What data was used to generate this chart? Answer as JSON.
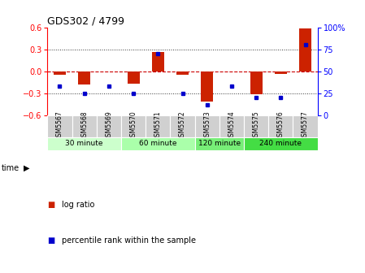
{
  "title": "GDS302 / 4799",
  "samples": [
    "GSM5567",
    "GSM5568",
    "GSM5569",
    "GSM5570",
    "GSM5571",
    "GSM5572",
    "GSM5573",
    "GSM5574",
    "GSM5575",
    "GSM5576",
    "GSM5577"
  ],
  "log_ratio": [
    -0.05,
    -0.18,
    -0.01,
    -0.17,
    0.26,
    -0.05,
    -0.42,
    -0.01,
    -0.32,
    -0.04,
    0.58
  ],
  "percentile_rank": [
    33,
    25,
    33,
    25,
    70,
    25,
    12,
    33,
    20,
    20,
    80
  ],
  "ylim_left": [
    -0.6,
    0.6
  ],
  "ylim_right": [
    0,
    100
  ],
  "yticks_left": [
    -0.6,
    -0.3,
    0.0,
    0.3,
    0.6
  ],
  "yticks_right": [
    0,
    25,
    50,
    75,
    100
  ],
  "bar_color": "#cc2200",
  "point_color": "#0000cc",
  "hline_color": "#cc0000",
  "dotted_line_color": "#333333",
  "groups": [
    {
      "label": "30 minute",
      "samples": [
        0,
        1,
        2
      ]
    },
    {
      "label": "60 minute",
      "samples": [
        3,
        4,
        5
      ]
    },
    {
      "label": "120 minute",
      "samples": [
        6,
        7
      ]
    },
    {
      "label": "240 minute",
      "samples": [
        8,
        9,
        10
      ]
    }
  ],
  "group_colors": [
    "#ccffcc",
    "#aaffaa",
    "#77ee77",
    "#44dd44"
  ],
  "time_label": "time",
  "legend_log_ratio_color": "#cc2200",
  "legend_percentile_color": "#0000cc",
  "bg_color": "#ffffff",
  "plot_bg_color": "#ffffff"
}
